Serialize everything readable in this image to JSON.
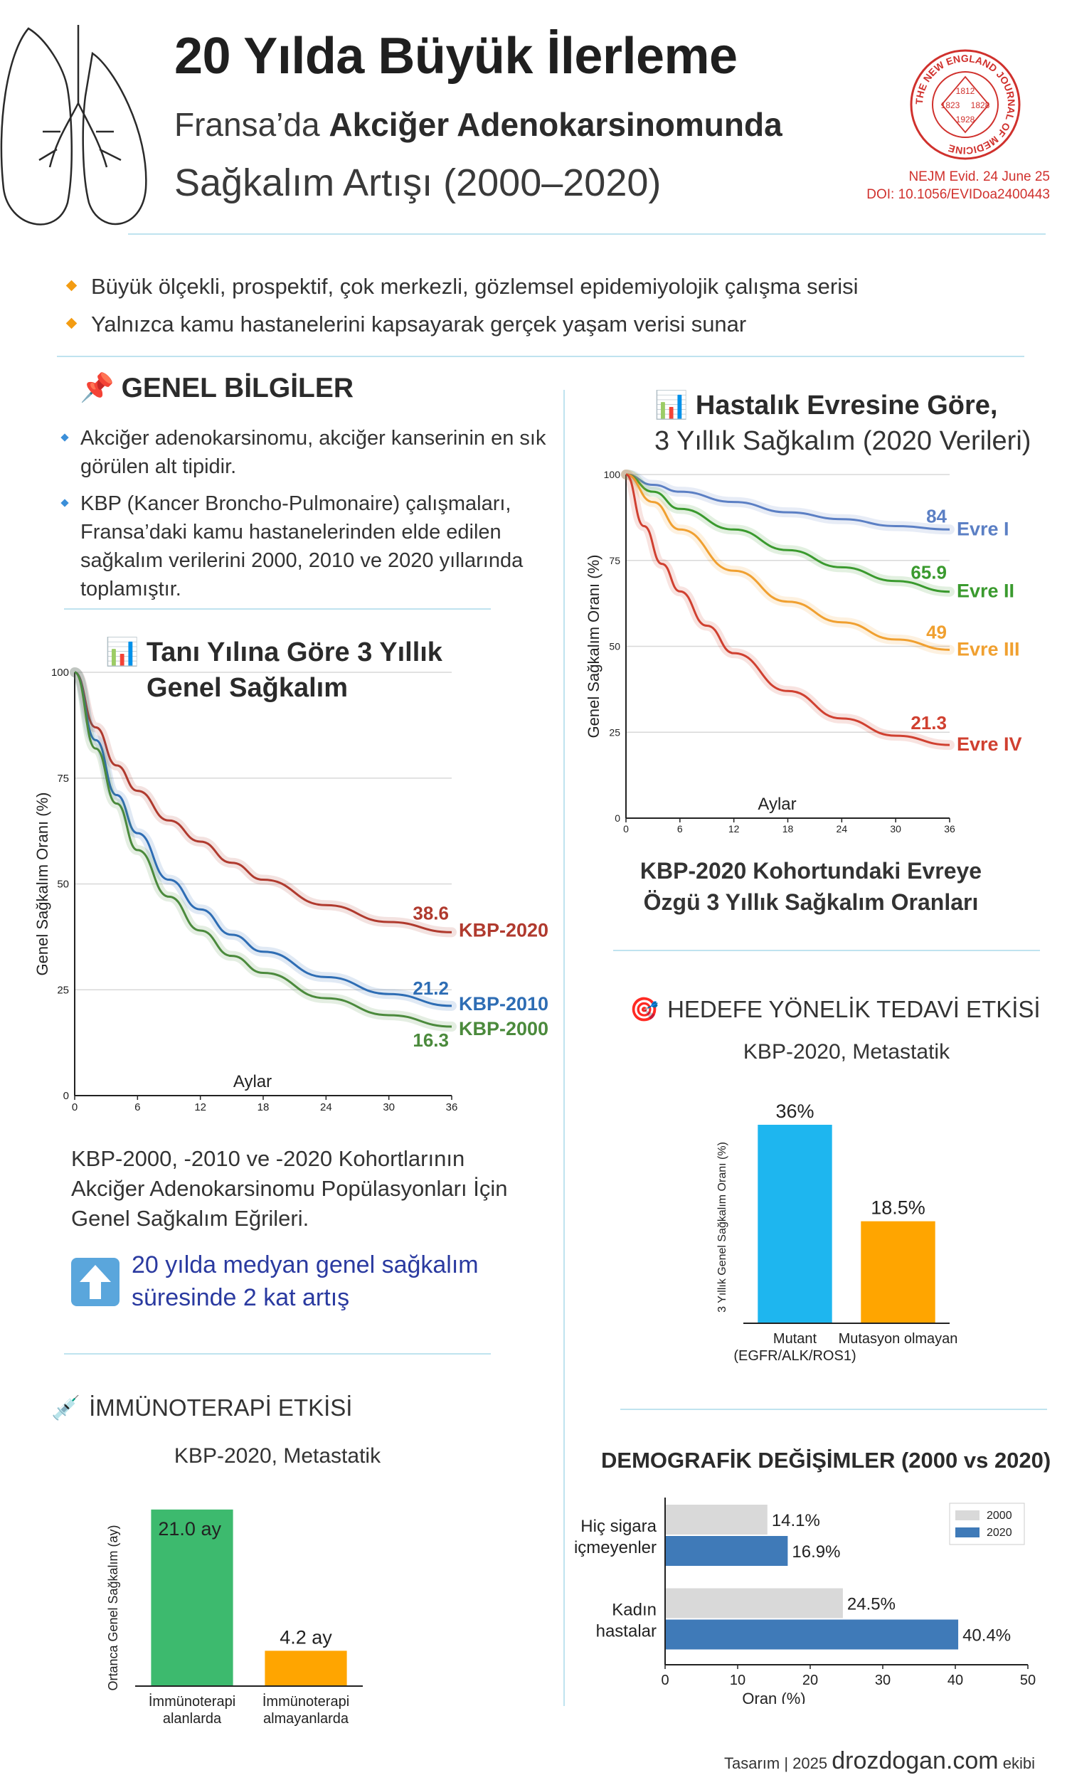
{
  "header": {
    "title": "20 Yılda Büyük İlerleme",
    "subtitle_prefix": "Fransa’da ",
    "subtitle_bold": "Akciğer Adenokarsinomunda",
    "subtitle_line2": "Sağkalım Artışı (2000–2020)",
    "ref_journal": "NEJM Evid. 24 June 25",
    "ref_doi": "DOI: 10.1056/EVIDoa2400443",
    "seal_text": "THE NEW ENGLAND JOURNAL OF MEDICINE",
    "seal_years": [
      "1812",
      "1823",
      "1828",
      "1928"
    ]
  },
  "intro": {
    "bullets": [
      "Büyük ölçekli, prospektif, çok merkezli, gözlemsel epidemiyolojik çalışma serisi",
      "Yalnızca kamu hastanelerini kapsayarak gerçek yaşam verisi sunar"
    ]
  },
  "general": {
    "icon": "pushpin-icon",
    "heading": "GENEL BİLGİLER",
    "items": [
      "Akciğer adenokarsinomu, akciğer kanserinin en sık görülen alt tipidir.",
      "KBP (Kancer Broncho-Pulmonaire) çalışmaları, Fransa’daki kamu hastanelerinden elde edilen sağkalım verilerini 2000, 2010 ve 2020 yıllarında toplamıştır."
    ]
  },
  "os_section": {
    "icon": "bar-chart-icon",
    "heading_line1": "Tanı Yılına Göre 3 Yıllık",
    "heading_line2": "Genel Sağkalım",
    "caption": "KBP-2000, -2010 ve -2020 Kohortlarının Akciğer Adenokarsinomu Popülasyonları İçin Genel Sağkalım Eğrileri.",
    "highlight": "20 yılda medyan genel sağkalım süresinde 2 kat artış"
  },
  "stage_section": {
    "icon": "bar-chart-icon",
    "heading_line1": "Hastalık Evresine Göre,",
    "heading_line2": "3 Yıllık Sağkalım (2020 Verileri)",
    "caption": "KBP-2020 Kohortundaki Evreye Özgü 3 Yıllık Sağkalım Oranları"
  },
  "targeted_section": {
    "icon": "target-icon",
    "heading": "HEDEFE YÖNELİK TEDAVİ ETKİSİ",
    "subcaption": "KBP-2020, Metastatik"
  },
  "immuno_section": {
    "icon": "syringe-icon",
    "heading": "İMMÜNOTERAPİ ETKİSİ",
    "subcaption": "KBP-2020, Metastatik"
  },
  "demo_section": {
    "heading": "DEMOGRAFİK DEĞİŞİMLER (2000 vs 2020)"
  },
  "footer": {
    "prefix": "Tasarım | 2025",
    "brand": "drozdogan.com",
    "suffix": "ekibi"
  },
  "colors": {
    "kbp2020": "#b03a2e",
    "kbp2010": "#2e6db4",
    "kbp2000": "#4b8a3c",
    "evre1": "#5b7fc4",
    "evre2": "#3a9a2e",
    "evre3": "#f0a030",
    "evre4": "#d04030",
    "mutant": "#1eb6ef",
    "nonmutant": "#ffa500",
    "immuno": "#3dba6e",
    "noimmuno": "#ffa500",
    "y2000": "#d9d9d9",
    "y2020": "#3f7ab8",
    "accent_line": "#bfe3ef"
  },
  "chart_data": [
    {
      "id": "os_by_year",
      "type": "line",
      "xlabel": "Aylar",
      "ylabel": "Genel Sağkalım Oranı (%)",
      "xlim": [
        0,
        36
      ],
      "ylim": [
        0,
        100
      ],
      "xticks": [
        0,
        6,
        12,
        18,
        24,
        30,
        36
      ],
      "yticks": [
        0,
        25,
        50,
        75,
        100
      ],
      "grid": true,
      "series": [
        {
          "name": "KBP-2020",
          "end_label": "38.6",
          "x": [
            0,
            2,
            4,
            6,
            9,
            12,
            15,
            18,
            24,
            30,
            36
          ],
          "values": [
            100,
            87,
            78,
            72,
            65,
            60,
            55,
            51,
            45,
            41,
            38.6
          ]
        },
        {
          "name": "KBP-2010",
          "end_label": "21.2",
          "x": [
            0,
            2,
            4,
            6,
            9,
            12,
            15,
            18,
            24,
            30,
            36
          ],
          "values": [
            100,
            84,
            71,
            62,
            51,
            44,
            38,
            34,
            28,
            24,
            21.2
          ]
        },
        {
          "name": "KBP-2000",
          "end_label": "16.3",
          "x": [
            0,
            2,
            4,
            6,
            9,
            12,
            15,
            18,
            24,
            30,
            36
          ],
          "values": [
            100,
            82,
            69,
            58,
            47,
            39,
            33,
            29,
            23,
            19,
            16.3
          ]
        }
      ]
    },
    {
      "id": "survival_by_stage",
      "type": "line",
      "xlabel": "Aylar",
      "ylabel": "Genel Sağkalım Oranı (%)",
      "xlim": [
        0,
        36
      ],
      "ylim": [
        0,
        100
      ],
      "xticks": [
        0,
        6,
        12,
        18,
        24,
        30,
        36
      ],
      "yticks": [
        0,
        25,
        50,
        75,
        100
      ],
      "grid": true,
      "series": [
        {
          "name": "Evre I",
          "end_label": "84",
          "x": [
            0,
            3,
            6,
            12,
            18,
            24,
            30,
            36
          ],
          "values": [
            100,
            97,
            95,
            92,
            89,
            87,
            85,
            84
          ]
        },
        {
          "name": "Evre II",
          "end_label": "65.9",
          "x": [
            0,
            3,
            6,
            12,
            18,
            24,
            30,
            36
          ],
          "values": [
            100,
            95,
            90,
            84,
            78,
            73,
            69,
            65.9
          ]
        },
        {
          "name": "Evre III",
          "end_label": "49",
          "x": [
            0,
            3,
            6,
            12,
            18,
            24,
            30,
            36
          ],
          "values": [
            100,
            92,
            84,
            72,
            63,
            57,
            52,
            49
          ]
        },
        {
          "name": "Evre IV",
          "end_label": "21.3",
          "x": [
            0,
            2,
            4,
            6,
            9,
            12,
            18,
            24,
            30,
            36
          ],
          "values": [
            100,
            85,
            74,
            66,
            56,
            48,
            37,
            29,
            24,
            21.3
          ]
        }
      ]
    },
    {
      "id": "targeted_therapy",
      "type": "bar",
      "ylabel": "3 Yıllık Genel Sağkalım Oranı (%)",
      "categories": [
        "Mutant\n(EGFR/ALK/ROS1)",
        "Mutasyon olmayan"
      ],
      "values": [
        36,
        18.5
      ],
      "labels": [
        "36%",
        "18.5%"
      ],
      "ylim": [
        0,
        40
      ]
    },
    {
      "id": "immunotherapy",
      "type": "bar",
      "ylabel": "Ortanca Genel Sağkalım (ay)",
      "categories": [
        "İmmünoterapi\nalanlarda",
        "İmmünoterapi\nalmayanlarda"
      ],
      "values": [
        21.0,
        4.2
      ],
      "labels": [
        "21.0 ay",
        "4.2 ay"
      ],
      "ylim": [
        0,
        22
      ]
    },
    {
      "id": "demographics",
      "type": "bar",
      "orientation": "horizontal",
      "xlabel": "Oran (%)",
      "categories": [
        "Hiç sigara\niçmeyenler",
        "Kadın\nhastalar"
      ],
      "series": [
        {
          "name": "2000",
          "values": [
            14.1,
            24.5
          ],
          "labels": [
            "14.1%",
            "24.5%"
          ]
        },
        {
          "name": "2020",
          "values": [
            16.9,
            40.4
          ],
          "labels": [
            "16.9%",
            "40.4%"
          ]
        }
      ],
      "xlim": [
        0,
        50
      ],
      "xticks": [
        0,
        10,
        20,
        30,
        40,
        50
      ],
      "legend": "top-right"
    }
  ]
}
